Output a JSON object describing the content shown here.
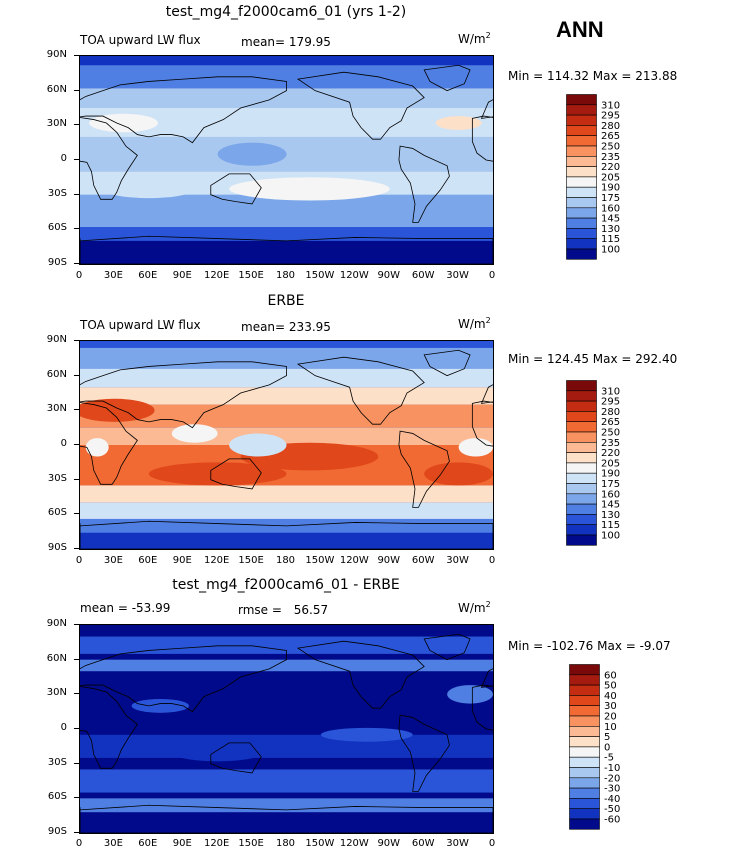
{
  "season": "ANN",
  "panels": [
    {
      "id": "test",
      "title": "test_mg4_f2000cam6_01 (yrs 1-2)",
      "left_label": "TOA upward LW flux",
      "stat_label": "mean=",
      "stat_value": "179.95",
      "units_base": "W/m",
      "units_exp": "2",
      "minmax_text": "Min = 114.32 Max = 213.88",
      "scale": "absolute"
    },
    {
      "id": "obs",
      "title": "ERBE",
      "left_label": "TOA upward LW flux",
      "stat_label": "mean=",
      "stat_value": "233.95",
      "units_base": "W/m",
      "units_exp": "2",
      "minmax_text": "Min = 124.45 Max = 292.40",
      "scale": "absolute"
    },
    {
      "id": "diff",
      "title": "test_mg4_f2000cam6_01 - ERBE",
      "left_label": "mean = -53.99",
      "stat_label": "rmse =",
      "stat_value": "56.57",
      "units_base": "W/m",
      "units_exp": "2",
      "minmax_text": "Min = -102.76 Max =  -9.07",
      "scale": "difference"
    }
  ],
  "lat_ticks": [
    "90N",
    "60N",
    "30N",
    "0",
    "30S",
    "60S",
    "90S"
  ],
  "lon_ticks": [
    "0",
    "30E",
    "60E",
    "90E",
    "120E",
    "150E",
    "180",
    "150W",
    "120W",
    "90W",
    "60W",
    "30W",
    "0"
  ],
  "abs_colorbar": {
    "labels": [
      "310",
      "295",
      "280",
      "265",
      "250",
      "235",
      "220",
      "205",
      "190",
      "175",
      "160",
      "145",
      "130",
      "115",
      "100"
    ],
    "colors": [
      "#7a0a0a",
      "#a61b0f",
      "#c52d12",
      "#e0481b",
      "#f26a33",
      "#f89260",
      "#fbb994",
      "#fde0c8",
      "#f5f5f5",
      "#cfe3f7",
      "#a8c8f0",
      "#7ba6ea",
      "#4f7fe2",
      "#2a55d9",
      "#1232c0",
      "#000a8a"
    ]
  },
  "diff_colorbar": {
    "labels": [
      "60",
      "50",
      "40",
      "30",
      "20",
      "10",
      "5",
      "0",
      "-5",
      "-10",
      "-20",
      "-30",
      "-40",
      "-50",
      "-60"
    ],
    "colors": [
      "#7a0a0a",
      "#a61b0f",
      "#c52d12",
      "#e0481b",
      "#f26a33",
      "#f89260",
      "#fbb994",
      "#fde0c8",
      "#f5f5f5",
      "#cfe3f7",
      "#a8c8f0",
      "#7ba6ea",
      "#4f7fe2",
      "#2a55d9",
      "#1232c0",
      "#000a8a"
    ]
  }
}
